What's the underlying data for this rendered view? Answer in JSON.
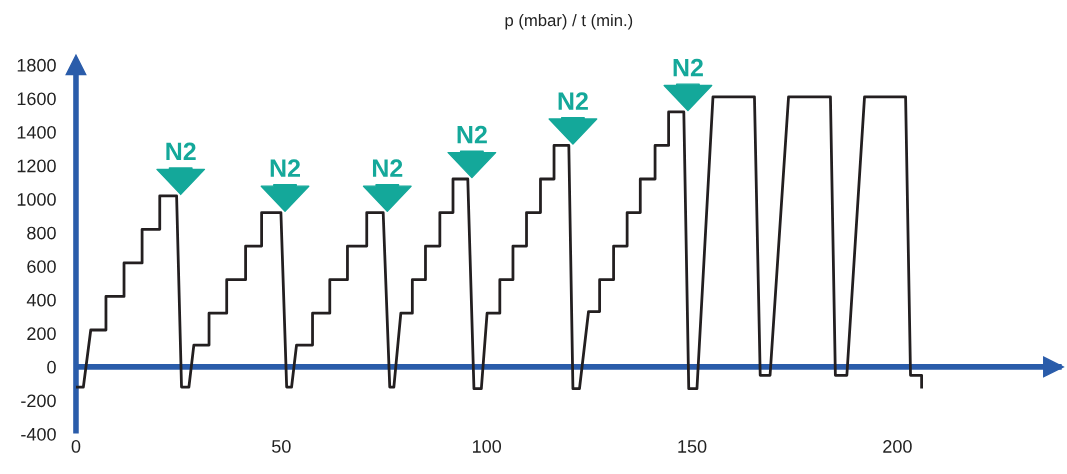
{
  "chart_data": {
    "type": "line",
    "title": "p (mbar) / t (min.)",
    "x": [
      0,
      1.8,
      3.6,
      7.3,
      7.3,
      11.7,
      11.7,
      16.1,
      16.1,
      20.4,
      20.4,
      24.5,
      25.7,
      27.5,
      28.7,
      32.4,
      32.4,
      36.7,
      36.7,
      41.3,
      41.3,
      45.2,
      45.2,
      49.9,
      51.3,
      52.5,
      53.7,
      57.6,
      57.6,
      61.8,
      61.8,
      66.1,
      66.1,
      70.8,
      70.8,
      74.8,
      76.4,
      77.4,
      79.1,
      81.9,
      81.9,
      85.1,
      85.1,
      88.6,
      88.6,
      91.8,
      91.8,
      95.4,
      96.9,
      98.7,
      100.1,
      103.2,
      103.2,
      106.4,
      106.4,
      109.7,
      109.7,
      113.1,
      113.1,
      116.4,
      116.4,
      120,
      121,
      122.6,
      124.8,
      127.5,
      127.5,
      130.9,
      130.9,
      134.2,
      134.2,
      137.4,
      137.4,
      141,
      141,
      144.3,
      144.3,
      148,
      149.2,
      151.2,
      155.1,
      165.2,
      166.6,
      169,
      173.5,
      183.7,
      184.9,
      187.7,
      192,
      202,
      203.2,
      205.9,
      205.9
    ],
    "series": [
      {
        "color": "#231f20",
        "values": [
          -120,
          -120,
          220,
          220,
          420,
          420,
          620,
          620,
          820,
          820,
          1020,
          1020,
          -120,
          -120,
          130,
          130,
          320,
          320,
          520,
          520,
          720,
          720,
          920,
          920,
          -120,
          -120,
          130,
          130,
          320,
          320,
          520,
          520,
          720,
          720,
          920,
          920,
          -120,
          -120,
          320,
          320,
          520,
          520,
          720,
          720,
          920,
          920,
          1120,
          1120,
          -130,
          -130,
          320,
          320,
          520,
          520,
          720,
          720,
          920,
          920,
          1120,
          1120,
          1320,
          1320,
          -130,
          -130,
          330,
          330,
          520,
          520,
          720,
          720,
          920,
          920,
          1120,
          1120,
          1320,
          1320,
          1520,
          1520,
          -130,
          -130,
          1610,
          1610,
          -50,
          -50,
          1610,
          1610,
          -50,
          -50,
          1610,
          1610,
          -50,
          -50,
          -120
        ]
      }
    ],
    "xlim": [
      0,
      240
    ],
    "ylim": [
      -400,
      1800
    ],
    "xticks": [
      0,
      50,
      100,
      150,
      200
    ],
    "yticks": [
      -400,
      -200,
      0,
      200,
      400,
      600,
      800,
      1000,
      1200,
      1400,
      1600,
      1800
    ],
    "annotations": [
      {
        "text": "N2",
        "x": 24.5,
        "y": 1020
      },
      {
        "text": "N2",
        "x": 49.9,
        "y": 920
      },
      {
        "text": "N2",
        "x": 74.8,
        "y": 920
      },
      {
        "text": "N2",
        "x": 95.4,
        "y": 1120
      },
      {
        "text": "N2",
        "x": 120,
        "y": 1320
      },
      {
        "text": "N2",
        "x": 148,
        "y": 1520
      }
    ],
    "ref_lines": [
      {
        "axis": "y",
        "value": 0,
        "color": "#2a5caa",
        "line_style": "solid"
      }
    ],
    "grid": false,
    "marker": "none",
    "line_style": "solid"
  }
}
